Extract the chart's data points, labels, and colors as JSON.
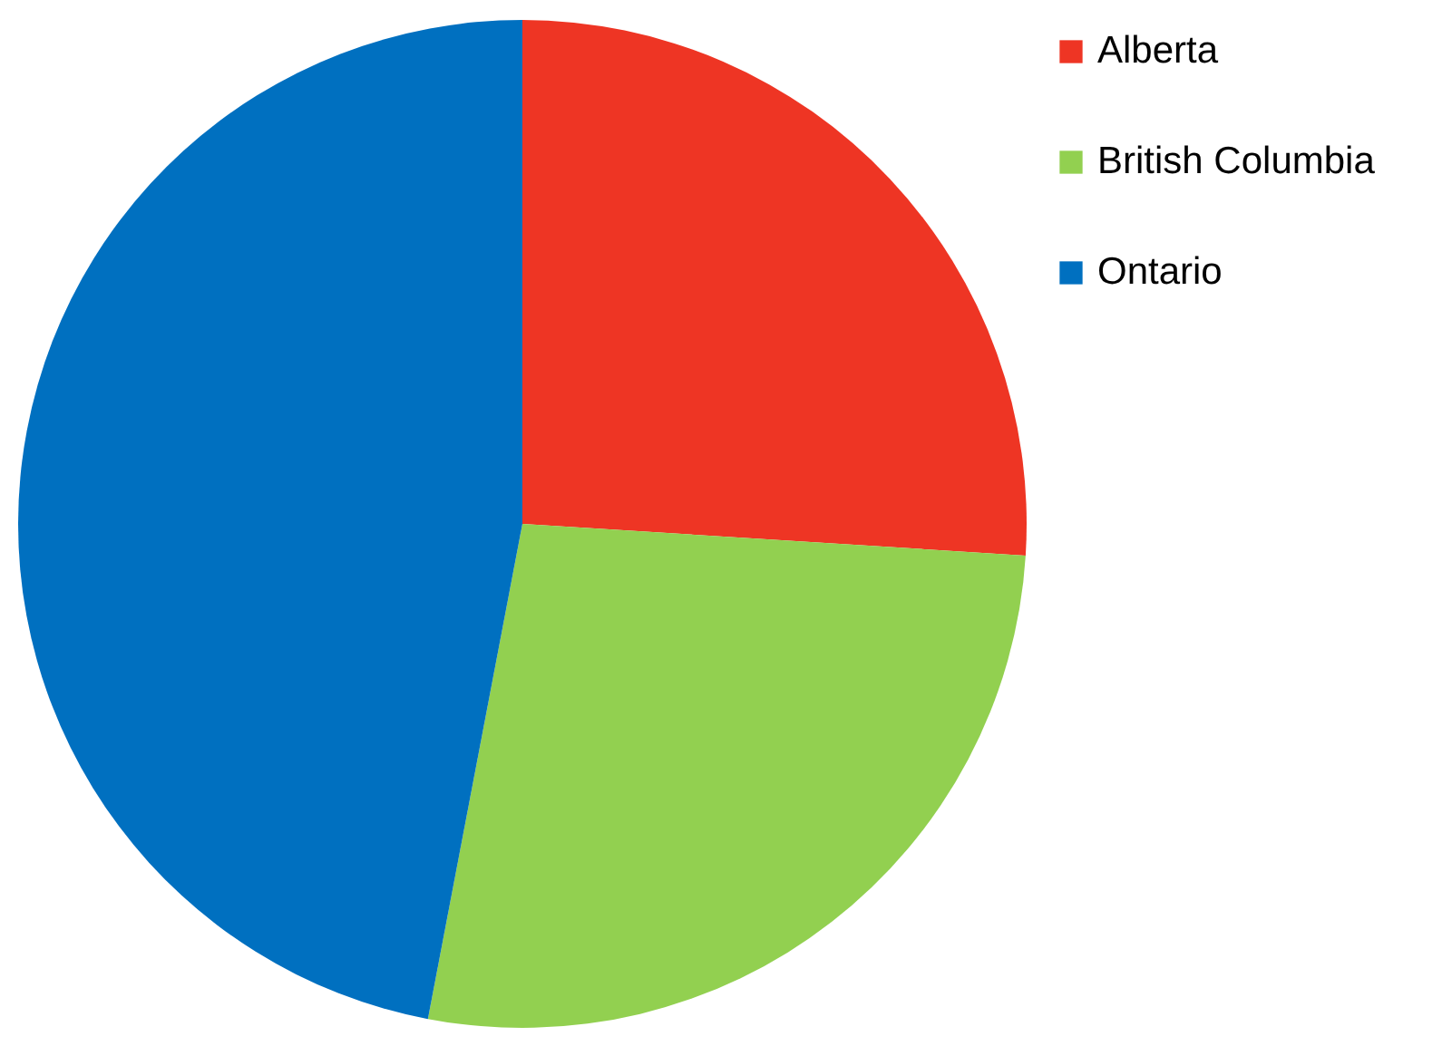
{
  "chart_data": {
    "type": "pie",
    "categories": [
      "Alberta",
      "British Columbia",
      "Ontario"
    ],
    "values": [
      26,
      27,
      47
    ],
    "colors": [
      "#ee3524",
      "#92d050",
      "#0070c0"
    ],
    "legend": "top right"
  }
}
